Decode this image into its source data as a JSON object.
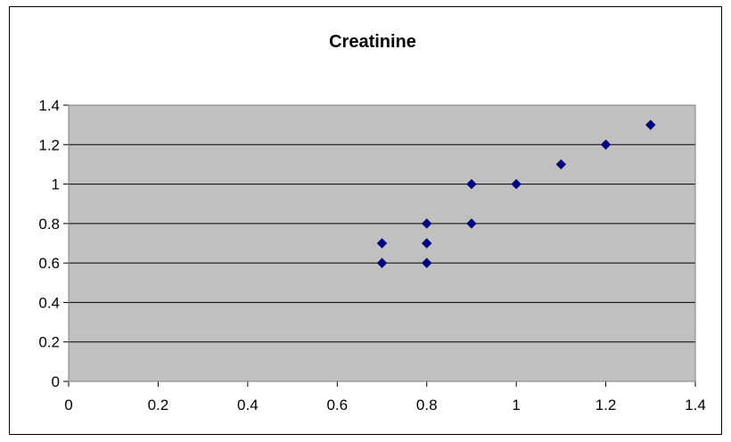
{
  "chart_data": {
    "type": "scatter",
    "title": "Creatinine",
    "xlabel": "",
    "ylabel": "",
    "xlim": [
      0,
      1.4
    ],
    "ylim": [
      0,
      1.4
    ],
    "x_ticks": [
      "0",
      "0.2",
      "0.4",
      "0.6",
      "0.8",
      "1",
      "1.2",
      "1.4"
    ],
    "y_ticks": [
      "0",
      "0.2",
      "0.4",
      "0.6",
      "0.8",
      "1",
      "1.2",
      "1.4"
    ],
    "grid": "horizontal",
    "legend": "none",
    "series": [
      {
        "points": [
          {
            "x": 0.7,
            "y": 0.6
          },
          {
            "x": 0.7,
            "y": 0.7
          },
          {
            "x": 0.8,
            "y": 0.6
          },
          {
            "x": 0.8,
            "y": 0.7
          },
          {
            "x": 0.8,
            "y": 0.8
          },
          {
            "x": 0.9,
            "y": 0.8
          },
          {
            "x": 0.9,
            "y": 1.0
          },
          {
            "x": 1.0,
            "y": 1.0
          },
          {
            "x": 1.1,
            "y": 1.1
          },
          {
            "x": 1.2,
            "y": 1.2
          },
          {
            "x": 1.3,
            "y": 1.3
          }
        ]
      }
    ],
    "colors": {
      "plot_background": "#c0c0c0",
      "marker": "#000080",
      "gridline": "#000000"
    },
    "marker_shape": "diamond"
  }
}
